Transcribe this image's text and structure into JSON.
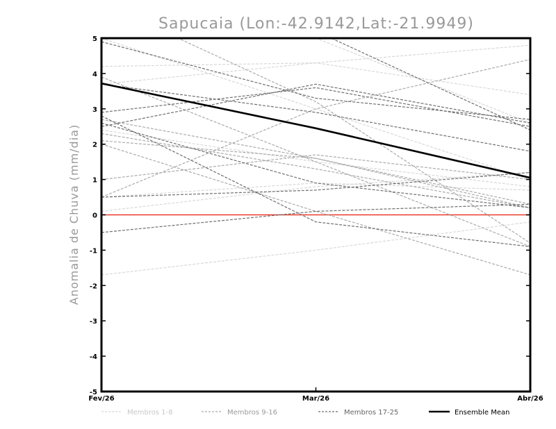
{
  "chart_data": {
    "type": "line",
    "title": "Sapucaia (Lon:-42.9142,Lat:-21.9949)",
    "xlabel": "",
    "ylabel": "Anomalia de Chuva (mm/dia)",
    "categories": [
      "Fev/26",
      "Mar/26",
      "Abr/26"
    ],
    "ylim": [
      -5,
      5
    ],
    "yticks": [
      "5",
      "4",
      "3",
      "2",
      "1",
      "0",
      "-1",
      "-2",
      "-3",
      "-4",
      "-5"
    ],
    "zero_line_color": "#e83a2a",
    "grid": false,
    "legend": [
      {
        "label": "Membros 1-8",
        "color": "#d8d8d8",
        "style": "dashed"
      },
      {
        "label": "Membros 9-16",
        "color": "#aaaaaa",
        "style": "dashed"
      },
      {
        "label": "Membros 17-25",
        "color": "#6e6e6e",
        "style": "dashed"
      },
      {
        "label": "Ensemble Mean",
        "color": "#000000",
        "style": "solid"
      }
    ],
    "series": [
      {
        "name": "Membro 1",
        "group": 0,
        "values": [
          0.1,
          0.8,
          1.2
        ]
      },
      {
        "name": "Membro 2",
        "group": 0,
        "values": [
          -1.7,
          -1.0,
          -0.2
        ]
      },
      {
        "name": "Membro 3",
        "group": 0,
        "values": [
          4.2,
          4.3,
          3.4
        ]
      },
      {
        "name": "Membro 4",
        "group": 0,
        "values": [
          3.7,
          4.3,
          4.8
        ]
      },
      {
        "name": "Membro 5",
        "group": 0,
        "values": [
          0.5,
          0.9,
          0.7
        ]
      },
      {
        "name": "Membro 6",
        "group": 0,
        "values": [
          5.0,
          3.0,
          1.0
        ]
      },
      {
        "name": "Membro 7",
        "group": 0,
        "values": [
          2.4,
          1.5,
          0.8
        ]
      },
      {
        "name": "Membro 8",
        "group": 0,
        "values": [
          6.0,
          5.0,
          2.6
        ]
      },
      {
        "name": "Membro 9",
        "group": 1,
        "values": [
          2.1,
          1.6,
          0.2
        ]
      },
      {
        "name": "Membro 10",
        "group": 1,
        "values": [
          1.0,
          1.7,
          1.0
        ]
      },
      {
        "name": "Membro 11",
        "group": 1,
        "values": [
          0.5,
          3.0,
          4.4
        ]
      },
      {
        "name": "Membro 12",
        "group": 1,
        "values": [
          2.7,
          1.6,
          0.3
        ]
      },
      {
        "name": "Membro 13",
        "group": 1,
        "values": [
          2.0,
          0.1,
          -1.7
        ]
      },
      {
        "name": "Membro 14",
        "group": 1,
        "values": [
          3.9,
          1.5,
          -0.9
        ]
      },
      {
        "name": "Membro 15",
        "group": 1,
        "values": [
          2.3,
          1.3,
          0.2
        ]
      },
      {
        "name": "Membro 16",
        "group": 1,
        "values": [
          6.0,
          3.2,
          -0.8
        ]
      },
      {
        "name": "Membro 17",
        "group": 2,
        "values": [
          2.5,
          3.7,
          2.6
        ]
      },
      {
        "name": "Membro 18",
        "group": 2,
        "values": [
          -0.5,
          0.1,
          0.3
        ]
      },
      {
        "name": "Membro 19",
        "group": 2,
        "values": [
          4.9,
          3.3,
          2.7
        ]
      },
      {
        "name": "Membro 20",
        "group": 2,
        "values": [
          2.8,
          -0.2,
          -0.9
        ]
      },
      {
        "name": "Membro 21",
        "group": 2,
        "values": [
          2.6,
          0.9,
          0.2
        ]
      },
      {
        "name": "Membro 22",
        "group": 2,
        "values": [
          0.5,
          0.7,
          1.2
        ]
      },
      {
        "name": "Membro 23",
        "group": 2,
        "values": [
          3.7,
          2.9,
          1.8
        ]
      },
      {
        "name": "Membro 24",
        "group": 2,
        "values": [
          6.0,
          5.2,
          2.4
        ]
      },
      {
        "name": "Membro 25",
        "group": 2,
        "values": [
          2.9,
          3.6,
          2.5
        ]
      },
      {
        "name": "Ensemble Mean",
        "group": 3,
        "values": [
          3.72,
          2.45,
          1.05
        ]
      }
    ]
  }
}
